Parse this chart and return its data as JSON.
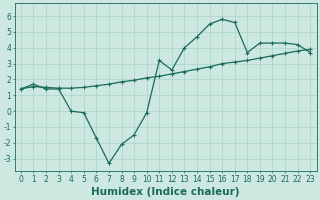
{
  "xlabel": "Humidex (Indice chaleur)",
  "ylabel": "",
  "bg_color": "#cce8e0",
  "grid_color": "#aad4ca",
  "line_color": "#1a6b5a",
  "xlim": [
    -0.5,
    23.5
  ],
  "ylim": [
    -3.8,
    6.8
  ],
  "xticks": [
    0,
    1,
    2,
    3,
    4,
    5,
    6,
    7,
    8,
    9,
    10,
    11,
    12,
    13,
    14,
    15,
    16,
    17,
    18,
    19,
    20,
    21,
    22,
    23
  ],
  "yticks": [
    -3,
    -2,
    -1,
    0,
    1,
    2,
    3,
    4,
    5,
    6
  ],
  "series1_x": [
    0,
    1,
    2,
    3,
    4,
    5,
    6,
    7,
    8,
    9,
    10,
    11,
    12,
    13,
    14,
    15,
    16,
    17,
    18,
    19,
    20,
    21,
    22,
    23
  ],
  "series1_y": [
    1.4,
    1.7,
    1.4,
    1.4,
    0.0,
    -0.1,
    -1.7,
    -3.3,
    -2.1,
    -1.5,
    -0.1,
    3.2,
    2.6,
    4.0,
    4.7,
    5.5,
    5.8,
    5.6,
    3.7,
    4.3,
    4.3,
    4.3,
    4.2,
    3.7
  ],
  "series2_x": [
    0,
    1,
    2,
    3,
    4,
    5,
    6,
    7,
    8,
    9,
    10,
    11,
    12,
    13,
    14,
    15,
    16,
    17,
    18,
    19,
    20,
    21,
    22,
    23
  ],
  "series2_y": [
    1.4,
    1.55,
    1.5,
    1.45,
    1.45,
    1.5,
    1.6,
    1.7,
    1.85,
    1.95,
    2.1,
    2.2,
    2.35,
    2.5,
    2.65,
    2.8,
    3.0,
    3.1,
    3.2,
    3.35,
    3.5,
    3.65,
    3.8,
    3.9
  ],
  "marker": "+",
  "markersize": 3,
  "linewidth": 0.9,
  "fontsize_label": 6.5,
  "fontsize_tick": 5.5,
  "fontsize_xlabel": 7.5
}
